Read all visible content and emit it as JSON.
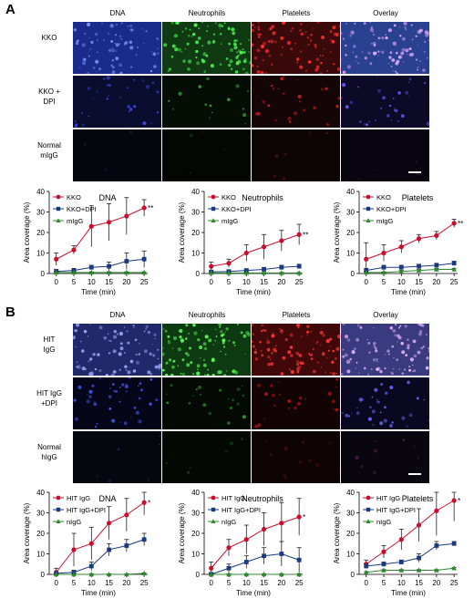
{
  "panels": [
    {
      "letter": "A",
      "columns": [
        "DNA",
        "Neutrophils",
        "Platelets",
        "Overlay"
      ],
      "rows": [
        "KKO",
        "KKO +\nDPI",
        "Normal\nmIgG"
      ],
      "images": [
        [
          {
            "bg": "#1a2b8a",
            "spot": "#7a94ff",
            "density": 70
          },
          {
            "bg": "#0f3a12",
            "spot": "#4dff5a",
            "density": 90
          },
          {
            "bg": "#3a0a0a",
            "spot": "#ff3030",
            "density": 80
          },
          {
            "bg": "#2a4090",
            "spot": "#e8b0ff",
            "density": 90
          }
        ],
        [
          {
            "bg": "#0a0d2e",
            "spot": "#4450ff",
            "density": 30
          },
          {
            "bg": "#050d05",
            "spot": "#3aa83a",
            "density": 15
          },
          {
            "bg": "#140506",
            "spot": "#d02020",
            "density": 25
          },
          {
            "bg": "#0c0a26",
            "spot": "#6a5aff",
            "density": 30
          }
        ],
        [
          {
            "bg": "#05050d",
            "spot": "#202050",
            "density": 5
          },
          {
            "bg": "#030603",
            "spot": "#103010",
            "density": 5
          },
          {
            "bg": "#0d0505",
            "spot": "#401010",
            "density": 8
          },
          {
            "bg": "#090510",
            "spot": "#301535",
            "density": 6
          }
        ]
      ],
      "charts": [
        {
          "type": "line",
          "title": "DNA",
          "xlabel": "Time (min)",
          "ylabel": "Area coverage (%)",
          "x": [
            0,
            5,
            10,
            15,
            20,
            25
          ],
          "ylim": [
            0,
            40
          ],
          "yticks": [
            0,
            10,
            20,
            30,
            40
          ],
          "annotation": "**",
          "series": [
            {
              "name": "KKO",
              "marker": "circle",
              "color": "#c8102e",
              "values": [
                7,
                11.5,
                23,
                25,
                28,
                32
              ],
              "errors": [
                3,
                2,
                10,
                9,
                9,
                4
              ]
            },
            {
              "name": "KKO+DPI",
              "marker": "square",
              "color": "#1a3a80",
              "values": [
                1,
                1.5,
                3,
                3.5,
                6,
                7
              ],
              "errors": [
                1,
                1,
                1,
                2,
                4,
                4
              ]
            },
            {
              "name": "mIgG",
              "marker": "triangle",
              "color": "#2e8b2e",
              "values": [
                0.5,
                0.5,
                0.5,
                0.5,
                0.5,
                0.5
              ],
              "errors": [
                0.3,
                0.3,
                0.3,
                0.3,
                0.3,
                0.3
              ]
            }
          ]
        },
        {
          "type": "line",
          "title": "Neutrophils",
          "xlabel": "Time (min)",
          "ylabel": "Area coverage (%)",
          "x": [
            0,
            5,
            10,
            15,
            20,
            25
          ],
          "ylim": [
            0,
            40
          ],
          "yticks": [
            0,
            10,
            20,
            30,
            40
          ],
          "annotation": "**",
          "series": [
            {
              "name": "KKO",
              "marker": "circle",
              "color": "#c8102e",
              "values": [
                3.5,
                5,
                10,
                13,
                16,
                19
              ],
              "errors": [
                2,
                2,
                4,
                6,
                5,
                5
              ]
            },
            {
              "name": "KKO+DPI",
              "marker": "square",
              "color": "#1a3a80",
              "values": [
                0.8,
                1,
                1.5,
                2,
                3,
                3.5
              ],
              "errors": [
                0.5,
                0.5,
                0.7,
                1,
                1,
                1
              ]
            },
            {
              "name": "mIgG",
              "marker": "triangle",
              "color": "#2e8b2e",
              "values": [
                0.3,
                0.3,
                0.3,
                0.3,
                0.3,
                0.3
              ],
              "errors": [
                0.2,
                0.2,
                0.2,
                0.2,
                0.2,
                0.2
              ]
            }
          ]
        },
        {
          "type": "line",
          "title": "Platelets",
          "xlabel": "Time (min)",
          "ylabel": "Area coverage (%)",
          "x": [
            0,
            5,
            10,
            15,
            20,
            25
          ],
          "ylim": [
            0,
            40
          ],
          "yticks": [
            0,
            10,
            20,
            30,
            40
          ],
          "annotation": "**",
          "series": [
            {
              "name": "KKO",
              "marker": "circle",
              "color": "#c8102e",
              "values": [
                7,
                10,
                13,
                17,
                18.5,
                24.5
              ],
              "errors": [
                8,
                4,
                3,
                2,
                2,
                2
              ]
            },
            {
              "name": "KKO+DPI",
              "marker": "square",
              "color": "#1a3a80",
              "values": [
                1.5,
                3,
                3,
                3.5,
                4,
                5
              ],
              "errors": [
                1,
                1,
                1,
                1,
                1,
                1
              ]
            },
            {
              "name": "mIgG",
              "marker": "triangle",
              "color": "#2e8b2e",
              "values": [
                0.5,
                0.5,
                1,
                1.5,
                2,
                2
              ],
              "errors": [
                0.3,
                0.3,
                0.5,
                0.5,
                0.5,
                0.5
              ]
            }
          ]
        }
      ]
    },
    {
      "letter": "B",
      "columns": [
        "DNA",
        "Neutrophils",
        "Platelets",
        "Overlay"
      ],
      "rows": [
        "HIT\nIgG",
        "HIT IgG\n+DPI",
        "Normal\nhIgG"
      ],
      "images": [
        [
          {
            "bg": "#202a6a",
            "spot": "#a0aaff",
            "density": 80
          },
          {
            "bg": "#0d3a10",
            "spot": "#60ff60",
            "density": 90
          },
          {
            "bg": "#400808",
            "spot": "#ff3a3a",
            "density": 90
          },
          {
            "bg": "#3a3a80",
            "spot": "#f0c0ff",
            "density": 90
          }
        ],
        [
          {
            "bg": "#05061a",
            "spot": "#4a60ff",
            "density": 40
          },
          {
            "bg": "#040904",
            "spot": "#30a030",
            "density": 20
          },
          {
            "bg": "#120404",
            "spot": "#c01818",
            "density": 25
          },
          {
            "bg": "#0a0820",
            "spot": "#6a6aff",
            "density": 35
          }
        ],
        [
          {
            "bg": "#06060f",
            "spot": "#252560",
            "density": 6
          },
          {
            "bg": "#030803",
            "spot": "#154015",
            "density": 8
          },
          {
            "bg": "#0f0404",
            "spot": "#501010",
            "density": 12
          },
          {
            "bg": "#0a0610",
            "spot": "#401840",
            "density": 8
          }
        ]
      ],
      "charts": [
        {
          "type": "line",
          "title": "DNA",
          "xlabel": "Time (min)",
          "ylabel": "Area coverage (%)",
          "x": [
            0,
            5,
            10,
            15,
            20,
            25
          ],
          "ylim": [
            0,
            40
          ],
          "yticks": [
            0,
            10,
            20,
            30,
            40
          ],
          "annotation": "*",
          "series": [
            {
              "name": "HIT IgG",
              "marker": "circle",
              "color": "#c8102e",
              "values": [
                1,
                12,
                15,
                25,
                29,
                35
              ],
              "errors": [
                2,
                8,
                8,
                8,
                8,
                6
              ]
            },
            {
              "name": "HIT IgG+DPI",
              "marker": "square",
              "color": "#1a3a80",
              "values": [
                0.5,
                1,
                4,
                12,
                14,
                17
              ],
              "errors": [
                0.5,
                1,
                2,
                3,
                3,
                3
              ]
            },
            {
              "name": "nIgG",
              "marker": "triangle",
              "color": "#2e8b2e",
              "values": [
                0,
                0,
                0,
                0,
                0,
                0.5
              ],
              "errors": [
                0.2,
                0.2,
                0.2,
                0.2,
                0.2,
                0.2
              ]
            }
          ]
        },
        {
          "type": "line",
          "title": "Neutrophils",
          "xlabel": "Time (min)",
          "ylabel": "Area coverage (%)",
          "x": [
            0,
            5,
            10,
            15,
            20,
            25
          ],
          "ylim": [
            0,
            40
          ],
          "yticks": [
            0,
            10,
            20,
            30,
            40
          ],
          "annotation": "*",
          "series": [
            {
              "name": "HIT IgG",
              "marker": "circle",
              "color": "#c8102e",
              "values": [
                3,
                13,
                17,
                22,
                25,
                28
              ],
              "errors": [
                3,
                4,
                7,
                8,
                10,
                9
              ]
            },
            {
              "name": "HIT IgG+DPI",
              "marker": "square",
              "color": "#1a3a80",
              "values": [
                0,
                3,
                6,
                9,
                10,
                7
              ],
              "errors": [
                1,
                2,
                3,
                4,
                6,
                6
              ]
            },
            {
              "name": "nIgG",
              "marker": "triangle",
              "color": "#2e8b2e",
              "values": [
                0,
                0,
                0,
                0,
                0,
                0
              ],
              "errors": [
                0.2,
                0.2,
                0.2,
                0.2,
                0.2,
                0.2
              ]
            }
          ]
        },
        {
          "type": "line",
          "title": "Platelets",
          "xlabel": "Time (min)",
          "ylabel": "Area coverage (%)",
          "x": [
            0,
            5,
            10,
            15,
            20,
            25
          ],
          "ylim": [
            0,
            40
          ],
          "yticks": [
            0,
            10,
            20,
            30,
            40
          ],
          "annotation": "*",
          "series": [
            {
              "name": "HIT IgG",
              "marker": "circle",
              "color": "#c8102e",
              "values": [
                5,
                11,
                17,
                24,
                31,
                36
              ],
              "errors": [
                2,
                3,
                5,
                8,
                12,
                10
              ]
            },
            {
              "name": "HIT IgG+DPI",
              "marker": "square",
              "color": "#1a3a80",
              "values": [
                4,
                5,
                6,
                8,
                14,
                15
              ],
              "errors": [
                1,
                1,
                1,
                2,
                2,
                1
              ]
            },
            {
              "name": "nIgG",
              "marker": "triangle",
              "color": "#2e8b2e",
              "values": [
                1,
                2,
                2,
                2,
                2,
                3
              ],
              "errors": [
                0.3,
                0.3,
                0.3,
                0.3,
                0.3,
                0.3
              ]
            }
          ]
        }
      ]
    }
  ]
}
